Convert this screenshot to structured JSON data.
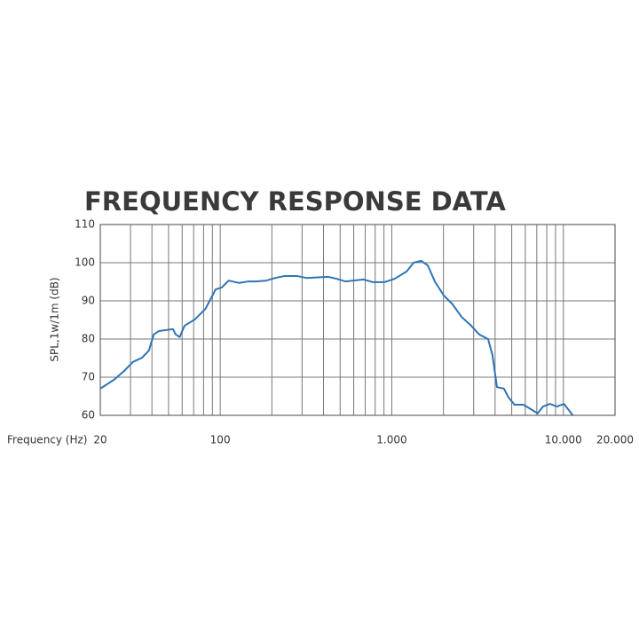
{
  "chart_data": {
    "type": "line",
    "title": "FREQUENCY RESPONSE DATA",
    "x_label": "Frequency (Hz)",
    "y_label": "SPL,1w/1m (dB)",
    "xscale": "log",
    "xlim": [
      20,
      20000
    ],
    "ylim": [
      60,
      110
    ],
    "xticks": [
      20,
      100,
      {
        "value": 1000,
        "label": "1.000"
      },
      {
        "value": 10000,
        "label": "10.000"
      },
      {
        "value": 20000,
        "label": "20.000"
      }
    ],
    "yticks": [
      60,
      70,
      80,
      90,
      100,
      110
    ],
    "xgrid": [
      20,
      30,
      40,
      50,
      60,
      70,
      80,
      90,
      100,
      200,
      300,
      400,
      500,
      600,
      700,
      800,
      900,
      1000,
      2000,
      3000,
      4000,
      5000,
      6000,
      7000,
      8000,
      9000,
      10000,
      20000
    ],
    "grid": true,
    "series": [
      {
        "name": "SPL",
        "color": "#2f74b5",
        "x": [
          20,
          24,
          27.5,
          31,
          35,
          38.4,
          41,
          44,
          53,
          55,
          58,
          62,
          71,
          82,
          94,
          102,
          112,
          129,
          146,
          161,
          185,
          209,
          236,
          282,
          318,
          424,
          476,
          537,
          686,
          775,
          906,
          1040,
          1220,
          1340,
          1480,
          1620,
          1790,
          2010,
          2260,
          2550,
          2870,
          3230,
          3640,
          3860,
          4100,
          4500,
          4790,
          5190,
          5850,
          6590,
          7070,
          7600,
          8350,
          9180,
          10080,
          11350
        ],
        "values": [
          67,
          69.3,
          71.6,
          74,
          75.1,
          77,
          81.2,
          82.1,
          82.6,
          81.2,
          80.5,
          83.5,
          85.1,
          87.9,
          93,
          93.5,
          95.3,
          94.7,
          95.1,
          95.1,
          95.3,
          96,
          96.5,
          96.5,
          96,
          96.3,
          95.8,
          95.1,
          95.6,
          94.9,
          94.9,
          95.8,
          97.7,
          100,
          100.5,
          99.3,
          94.9,
          91.4,
          89.1,
          85.8,
          83.7,
          81.2,
          80,
          75.8,
          67.4,
          67,
          64.7,
          62.8,
          62.8,
          61.4,
          60.5,
          62.3,
          63,
          62.3,
          63,
          60
        ]
      }
    ]
  }
}
